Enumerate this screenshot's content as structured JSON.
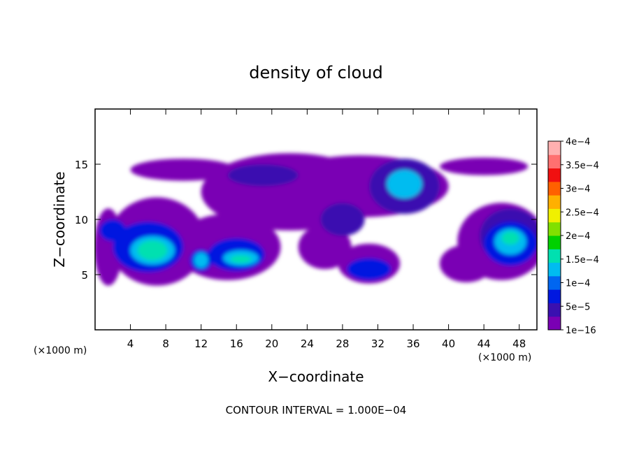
{
  "chart_data": {
    "type": "heatmap",
    "title": "density of cloud",
    "xlabel": "X−coordinate",
    "ylabel": "Z−coordinate",
    "x_unit_left": "(×1000 m)",
    "x_unit_right": "(×1000 m)",
    "footer": "CONTOUR INTERVAL = 1.000E−04",
    "xlim": [
      0,
      50
    ],
    "ylim": [
      0,
      20
    ],
    "x_ticks": [
      "4",
      "8",
      "12",
      "16",
      "20",
      "24",
      "28",
      "32",
      "36",
      "40",
      "44",
      "48"
    ],
    "y_ticks": [
      "5",
      "10",
      "15"
    ],
    "colorbar": {
      "labels": [
        "1e−16",
        "5e−5",
        "1e−4",
        "1.5e−4",
        "2e−4",
        "2.5e−4",
        "3e−4",
        "3.5e−4",
        "4e−4"
      ],
      "colors": [
        "#7a00b4",
        "#3a10b0",
        "#0018e0",
        "#0066f0",
        "#00bcf0",
        "#00e0b0",
        "#00d000",
        "#80e000",
        "#f0f000",
        "#ffb000",
        "#ff6000",
        "#f01010",
        "#ff7070",
        "#ffb0b0"
      ]
    },
    "regions": [
      {
        "level": 0,
        "x": 1.5,
        "z": 7.5,
        "rx": 1.6,
        "rz": 3.5
      },
      {
        "level": 0,
        "x": 7,
        "z": 8,
        "rx": 5.5,
        "rz": 4
      },
      {
        "level": 0,
        "x": 15,
        "z": 7.5,
        "rx": 6,
        "rz": 3
      },
      {
        "level": 0,
        "x": 22,
        "z": 12.5,
        "rx": 10,
        "rz": 3.5
      },
      {
        "level": 0,
        "x": 30,
        "z": 13,
        "rx": 10,
        "rz": 2.8
      },
      {
        "level": 0,
        "x": 10,
        "z": 14.5,
        "rx": 6,
        "rz": 1
      },
      {
        "level": 0,
        "x": 44,
        "z": 14.8,
        "rx": 5,
        "rz": 0.8
      },
      {
        "level": 0,
        "x": 46,
        "z": 8,
        "rx": 5,
        "rz": 3.5
      },
      {
        "level": 0,
        "x": 31,
        "z": 6,
        "rx": 3.5,
        "rz": 1.8
      },
      {
        "level": 0,
        "x": 42,
        "z": 6,
        "rx": 3,
        "rz": 1.7
      },
      {
        "level": 0,
        "x": 26,
        "z": 7.5,
        "rx": 3,
        "rz": 2
      },
      {
        "level": 1,
        "x": 35,
        "z": 13,
        "rx": 4,
        "rz": 2.5
      },
      {
        "level": 1,
        "x": 19,
        "z": 14,
        "rx": 4,
        "rz": 1
      },
      {
        "level": 1,
        "x": 28,
        "z": 10,
        "rx": 2.5,
        "rz": 1.5
      },
      {
        "level": 1,
        "x": 47,
        "z": 8.5,
        "rx": 3.5,
        "rz": 2.5
      },
      {
        "level": 2,
        "x": 6,
        "z": 7.5,
        "rx": 4,
        "rz": 2.3
      },
      {
        "level": 2,
        "x": 16,
        "z": 6.8,
        "rx": 3.2,
        "rz": 1.5
      },
      {
        "level": 2,
        "x": 12,
        "z": 6.3,
        "rx": 1.3,
        "rz": 1
      },
      {
        "level": 2,
        "x": 31,
        "z": 5.5,
        "rx": 2.5,
        "rz": 1
      },
      {
        "level": 2,
        "x": 2,
        "z": 9,
        "rx": 1.5,
        "rz": 1
      },
      {
        "level": 2,
        "x": 47,
        "z": 7.8,
        "rx": 3,
        "rz": 2
      },
      {
        "level": 3,
        "x": 35,
        "z": 13.2,
        "rx": 2,
        "rz": 1.3
      },
      {
        "level": 3,
        "x": 6.5,
        "z": 7.2,
        "rx": 2.5,
        "rz": 1.3
      },
      {
        "level": 3,
        "x": 16.5,
        "z": 6.5,
        "rx": 2,
        "rz": 0.7
      },
      {
        "level": 3,
        "x": 12,
        "z": 6.3,
        "rx": 0.8,
        "rz": 0.7
      },
      {
        "level": 3,
        "x": 47,
        "z": 8,
        "rx": 1.8,
        "rz": 1.2
      },
      {
        "level": 4,
        "x": 6.5,
        "z": 7.2,
        "rx": 1.7,
        "rz": 0.9
      },
      {
        "level": 4,
        "x": 16.5,
        "z": 6.4,
        "rx": 1.2,
        "rz": 0.35
      },
      {
        "level": 4,
        "x": 47,
        "z": 8.3,
        "rx": 1,
        "rz": 0.6
      }
    ]
  }
}
